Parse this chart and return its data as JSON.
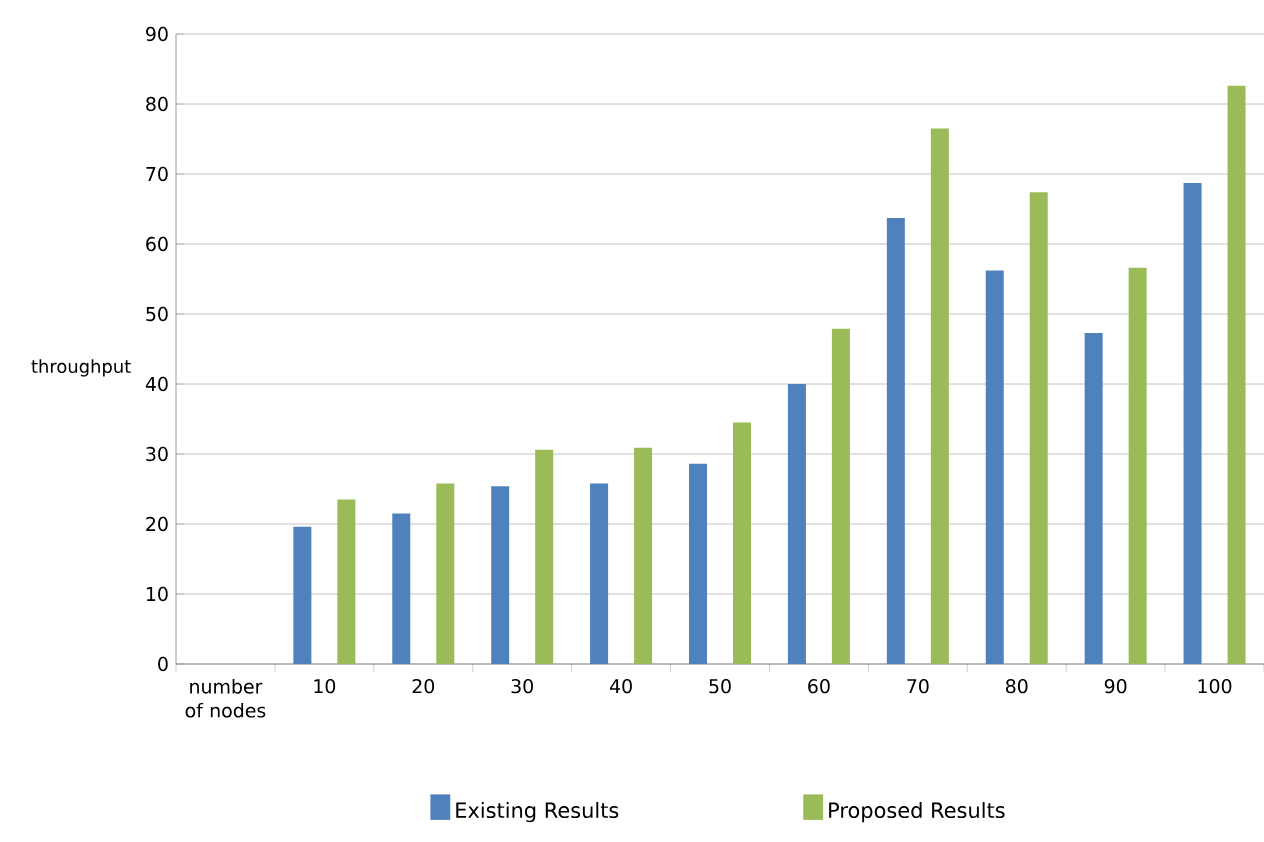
{
  "chart_data": {
    "type": "bar",
    "ylabel": "throughput",
    "categories": [
      "number of nodes",
      "10",
      "20",
      "30",
      "40",
      "50",
      "60",
      "70",
      "80",
      "90",
      "100"
    ],
    "series": [
      {
        "name": "Existing Results",
        "color": "#4f81bd",
        "values": [
          null,
          19.6,
          21.5,
          25.4,
          25.8,
          28.6,
          40.0,
          63.7,
          56.2,
          47.3,
          68.7
        ]
      },
      {
        "name": "Proposed Results",
        "color": "#9bbb59",
        "values": [
          null,
          23.5,
          25.8,
          30.6,
          30.9,
          34.5,
          47.9,
          76.5,
          67.4,
          56.6,
          82.6
        ]
      }
    ],
    "ylim": [
      0,
      90
    ],
    "yticks": [
      0,
      10,
      20,
      30,
      40,
      50,
      60,
      70,
      80,
      90
    ],
    "grid": "y",
    "legend": "bottom"
  }
}
